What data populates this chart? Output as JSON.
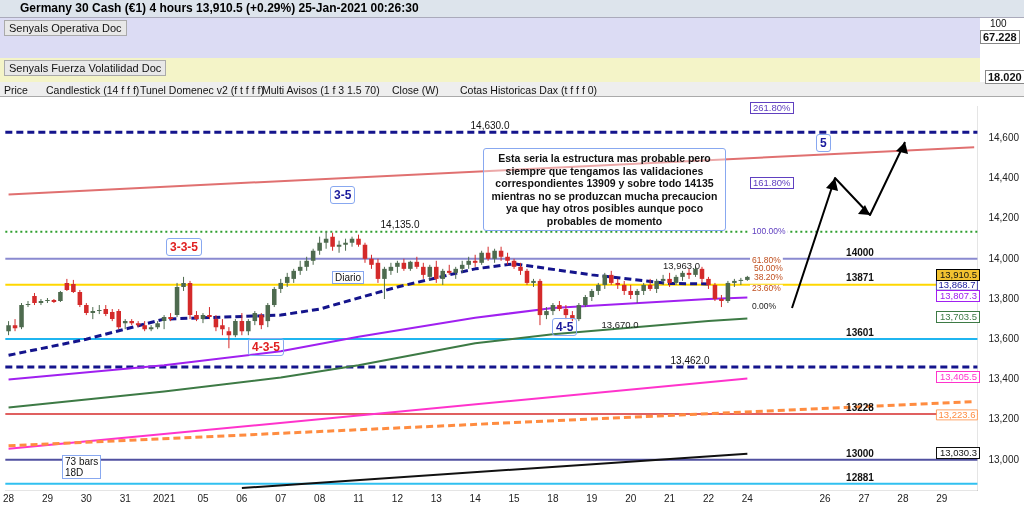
{
  "chart_data": {
    "type": "candlestick",
    "title": "Germany 30 Cash (€1) 4 hours 13,910.5 (+0.29%) 25-Jan-2021 00:26:30",
    "categories": [
      "28",
      null,
      null,
      null,
      null,
      null,
      "29",
      null,
      null,
      null,
      null,
      null,
      "30",
      null,
      null,
      null,
      null,
      null,
      "31",
      null,
      null,
      null,
      null,
      null,
      "2021",
      null,
      null,
      null,
      null,
      null,
      "05",
      null,
      null,
      null,
      null,
      null,
      "06",
      null,
      null,
      null,
      null,
      null,
      "07",
      null,
      null,
      null,
      null,
      null,
      "08",
      null,
      null,
      null,
      null,
      null,
      "11",
      null,
      null,
      null,
      null,
      null,
      "12",
      null,
      null,
      null,
      null,
      null,
      "13",
      null,
      null,
      null,
      null,
      null,
      "14",
      null,
      null,
      null,
      null,
      null,
      "15",
      null,
      null,
      null,
      null,
      null,
      "18",
      null,
      null,
      null,
      null,
      null,
      "19",
      null,
      null,
      null,
      null,
      null,
      "20",
      null,
      null,
      null,
      null,
      null,
      "21",
      null,
      null,
      null,
      null,
      null,
      "22",
      null,
      null,
      null,
      null,
      null,
      "24",
      null,
      null,
      null,
      null,
      null,
      null,
      null,
      null,
      null,
      null,
      null,
      "26",
      null,
      null,
      null,
      null,
      null,
      "27",
      null,
      null,
      null,
      null,
      null,
      "28",
      null,
      null,
      null,
      null,
      null,
      "29",
      null,
      null,
      null,
      null,
      null
    ],
    "ohlc": [
      [
        13640,
        13690,
        13620,
        13670
      ],
      [
        13670,
        13700,
        13640,
        13655
      ],
      [
        13660,
        13780,
        13650,
        13770
      ],
      [
        13770,
        13790,
        13760,
        13775
      ],
      [
        13815,
        13830,
        13770,
        13780
      ],
      [
        13780,
        13800,
        13770,
        13790
      ],
      [
        13790,
        13805,
        13780,
        13795
      ],
      [
        13795,
        13800,
        13780,
        13785
      ],
      [
        13790,
        13840,
        13785,
        13835
      ],
      [
        13880,
        13900,
        13840,
        13845
      ],
      [
        13875,
        13895,
        13830,
        13835
      ],
      [
        13835,
        13845,
        13760,
        13770
      ],
      [
        13770,
        13780,
        13720,
        13730
      ],
      [
        13730,
        13760,
        13700,
        13740
      ],
      [
        13740,
        13770,
        13725,
        13745
      ],
      [
        13750,
        13770,
        13715,
        13725
      ],
      [
        13735,
        13750,
        13690,
        13700
      ],
      [
        13740,
        13750,
        13650,
        13660
      ],
      [
        13680,
        13700,
        13650,
        13690
      ],
      [
        13690,
        13700,
        13670,
        13680
      ],
      [
        13680,
        13690,
        13660,
        13670
      ],
      [
        13670,
        13690,
        13640,
        13650
      ],
      [
        13650,
        13670,
        13640,
        13660
      ],
      [
        13660,
        13690,
        13650,
        13680
      ],
      [
        13690,
        13720,
        13650,
        13710
      ],
      [
        13710,
        13730,
        13690,
        13700
      ],
      [
        13720,
        13880,
        13710,
        13860
      ],
      [
        13860,
        13910,
        13840,
        13880
      ],
      [
        13880,
        13890,
        13700,
        13720
      ],
      [
        13720,
        13740,
        13690,
        13700
      ],
      [
        13700,
        13730,
        13680,
        13720
      ],
      [
        13720,
        13760,
        13700,
        13710
      ],
      [
        13700,
        13720,
        13640,
        13660
      ],
      [
        13670,
        13700,
        13620,
        13650
      ],
      [
        13640,
        13660,
        13555,
        13620
      ],
      [
        13620,
        13700,
        13610,
        13690
      ],
      [
        13690,
        13730,
        13620,
        13640
      ],
      [
        13640,
        13700,
        13620,
        13690
      ],
      [
        13690,
        13740,
        13670,
        13730
      ],
      [
        13720,
        13730,
        13650,
        13670
      ],
      [
        13690,
        13780,
        13660,
        13770
      ],
      [
        13770,
        13860,
        13760,
        13850
      ],
      [
        13850,
        13900,
        13830,
        13880
      ],
      [
        13880,
        13930,
        13860,
        13910
      ],
      [
        13900,
        13950,
        13880,
        13940
      ],
      [
        13940,
        13990,
        13920,
        13960
      ],
      [
        13960,
        14010,
        13940,
        13990
      ],
      [
        13990,
        14050,
        13970,
        14040
      ],
      [
        14040,
        14110,
        14020,
        14080
      ],
      [
        14080,
        14135,
        14050,
        14100
      ],
      [
        14110,
        14130,
        14040,
        14060
      ],
      [
        14060,
        14090,
        14030,
        14070
      ],
      [
        14070,
        14100,
        14040,
        14080
      ],
      [
        14080,
        14110,
        14060,
        14100
      ],
      [
        14100,
        14120,
        14060,
        14070
      ],
      [
        14070,
        14080,
        13980,
        14000
      ],
      [
        14000,
        14020,
        13950,
        13970
      ],
      [
        13980,
        14000,
        13880,
        13900
      ],
      [
        13900,
        13960,
        13800,
        13950
      ],
      [
        13940,
        13980,
        13920,
        13960
      ],
      [
        13960,
        13990,
        13930,
        13980
      ],
      [
        13980,
        14000,
        13940,
        13950
      ],
      [
        13950,
        13990,
        13940,
        13985
      ],
      [
        13985,
        14010,
        13950,
        13960
      ],
      [
        13960,
        13980,
        13900,
        13920
      ],
      [
        13910,
        13970,
        13890,
        13960
      ],
      [
        13960,
        13990,
        13880,
        13900
      ],
      [
        13900,
        13950,
        13870,
        13940
      ],
      [
        13940,
        13970,
        13920,
        13930
      ],
      [
        13930,
        13960,
        13900,
        13950
      ],
      [
        13950,
        13990,
        13930,
        13970
      ],
      [
        13970,
        14010,
        13950,
        13990
      ],
      [
        13990,
        14020,
        13960,
        13980
      ],
      [
        13980,
        14040,
        13970,
        14030
      ],
      [
        14030,
        14060,
        13990,
        14000
      ],
      [
        14000,
        14050,
        13980,
        14040
      ],
      [
        14040,
        14060,
        13990,
        14010
      ],
      [
        14010,
        14030,
        13970,
        13990
      ],
      [
        13990,
        14000,
        13950,
        13960
      ],
      [
        13960,
        13980,
        13920,
        13940
      ],
      [
        13940,
        13950,
        13870,
        13880
      ],
      [
        13880,
        13900,
        13860,
        13890
      ],
      [
        13890,
        13900,
        13670,
        13720
      ],
      [
        13720,
        13760,
        13700,
        13740
      ],
      [
        13740,
        13780,
        13720,
        13770
      ],
      [
        13770,
        13790,
        13740,
        13750
      ],
      [
        13750,
        13770,
        13700,
        13720
      ],
      [
        13720,
        13740,
        13690,
        13700
      ],
      [
        13700,
        13780,
        13690,
        13770
      ],
      [
        13770,
        13820,
        13760,
        13810
      ],
      [
        13810,
        13850,
        13790,
        13840
      ],
      [
        13840,
        13880,
        13820,
        13870
      ],
      [
        13870,
        13930,
        13850,
        13920
      ],
      [
        13920,
        13940,
        13870,
        13880
      ],
      [
        13880,
        13900,
        13850,
        13870
      ],
      [
        13870,
        13890,
        13820,
        13840
      ],
      [
        13840,
        13870,
        13800,
        13820
      ],
      [
        13820,
        13850,
        13780,
        13840
      ],
      [
        13840,
        13880,
        13820,
        13870
      ],
      [
        13870,
        13900,
        13840,
        13850
      ],
      [
        13850,
        13900,
        13830,
        13890
      ],
      [
        13890,
        13920,
        13870,
        13900
      ],
      [
        13900,
        13930,
        13860,
        13880
      ],
      [
        13880,
        13920,
        13870,
        13910
      ],
      [
        13910,
        13940,
        13890,
        13930
      ],
      [
        13930,
        13950,
        13900,
        13920
      ],
      [
        13920,
        13963,
        13910,
        13950
      ],
      [
        13950,
        13960,
        13880,
        13900
      ],
      [
        13900,
        13910,
        13850,
        13870
      ],
      [
        13870,
        13880,
        13790,
        13800
      ],
      [
        13800,
        13820,
        13760,
        13790
      ],
      [
        13790,
        13890,
        13780,
        13880
      ],
      [
        13880,
        13900,
        13860,
        13890
      ],
      [
        13890,
        13905,
        13870,
        13895
      ],
      [
        13895,
        13915,
        13890,
        13910
      ],
      null,
      null,
      null,
      null,
      null,
      null,
      null,
      null,
      null,
      null,
      null,
      null,
      null,
      null,
      null,
      null,
      null,
      null,
      null,
      null,
      null,
      null,
      null,
      null,
      null,
      null,
      null,
      null,
      null,
      null,
      null,
      null,
      null,
      null,
      null
    ],
    "colors": [
      "#4e6b4f",
      "#d42a2a",
      "#4e6b4f",
      "#4e6b4f",
      "#d42a2a",
      "#4e6b4f",
      "#4e6b4f",
      "#d42a2a",
      "#4e6b4f",
      "#d42a2a",
      "#d42a2a",
      "#d42a2a",
      "#d42a2a",
      "#4e6b4f",
      "#4e6b4f",
      "#d42a2a",
      "#d42a2a",
      "#d42a2a",
      "#4e6b4f",
      "#d42a2a",
      "#d42a2a",
      "#d42a2a",
      "#4e6b4f",
      "#4e6b4f",
      "#4e6b4f",
      "#d42a2a",
      "#4e6b4f",
      "#4e6b4f",
      "#d42a2a",
      "#d42a2a",
      "#4e6b4f",
      "#d42a2a",
      "#d42a2a",
      "#d42a2a",
      "#d42a2a",
      "#4e6b4f",
      "#d42a2a",
      "#4e6b4f",
      "#4e6b4f",
      "#d42a2a",
      "#4e6b4f",
      "#4e6b4f",
      "#4e6b4f",
      "#4e6b4f",
      "#4e6b4f",
      "#4e6b4f",
      "#4e6b4f",
      "#4e6b4f",
      "#4e6b4f",
      "#4e6b4f",
      "#d42a2a",
      "#4e6b4f",
      "#4e6b4f",
      "#4e6b4f",
      "#d42a2a",
      "#d42a2a",
      "#d42a2a",
      "#d42a2a",
      "#4e6b4f",
      "#4e6b4f",
      "#4e6b4f",
      "#d42a2a",
      "#4e6b4f",
      "#d42a2a",
      "#d42a2a",
      "#4e6b4f",
      "#d42a2a",
      "#4e6b4f",
      "#d42a2a",
      "#4e6b4f",
      "#4e6b4f",
      "#4e6b4f",
      "#d42a2a",
      "#4e6b4f",
      "#d42a2a",
      "#4e6b4f",
      "#d42a2a",
      "#d42a2a",
      "#d42a2a",
      "#d42a2a",
      "#d42a2a",
      "#4e6b4f",
      "#d42a2a",
      "#4e6b4f",
      "#4e6b4f",
      "#d42a2a",
      "#d42a2a",
      "#d42a2a",
      "#4e6b4f",
      "#4e6b4f",
      "#4e6b4f",
      "#4e6b4f",
      "#4e6b4f",
      "#d42a2a",
      "#d42a2a",
      "#d42a2a",
      "#d42a2a",
      "#4e6b4f",
      "#4e6b4f",
      "#d42a2a",
      "#4e6b4f",
      "#4e6b4f",
      "#d42a2a",
      "#4e6b4f",
      "#4e6b4f",
      "#d42a2a",
      "#4e6b4f",
      "#d42a2a",
      "#d42a2a",
      "#d42a2a",
      "#d42a2a",
      "#4e6b4f",
      "#4e6b4f",
      "#4e6b4f",
      "#4e6b4f",
      null,
      null,
      null,
      null,
      null,
      null,
      null,
      null,
      null,
      null,
      null,
      null,
      null,
      null,
      null,
      null,
      null,
      null,
      null,
      null,
      null,
      null,
      null,
      null,
      null,
      null,
      null,
      null,
      null,
      null,
      null,
      null,
      null,
      null,
      null
    ],
    "series": [
      {
        "type": "line",
        "color": "#e07070",
        "values": [
          14320,
          null,
          null,
          null,
          null,
          null,
          null,
          null,
          null,
          null,
          null,
          null,
          null,
          null,
          null,
          null,
          null,
          null,
          null,
          null,
          null,
          null,
          null,
          null,
          null,
          null,
          null,
          null,
          null,
          null,
          null,
          null,
          null,
          null,
          null,
          null,
          null,
          null,
          null,
          null,
          null,
          null,
          null,
          null,
          null,
          null,
          null,
          null,
          null,
          null,
          null,
          null,
          null,
          null,
          null,
          null,
          null,
          null,
          null,
          null,
          null,
          null,
          null,
          null,
          null,
          null,
          null,
          null,
          null,
          null,
          null,
          null,
          null,
          null,
          null,
          null,
          null,
          null,
          null,
          null,
          null,
          null,
          null,
          null,
          null,
          null,
          null,
          null,
          null,
          null,
          null,
          null,
          null,
          null,
          null,
          null,
          null,
          null,
          null,
          null,
          null,
          null,
          null,
          null,
          null,
          null,
          null,
          null,
          null,
          null,
          null,
          null,
          null,
          null,
          null,
          null,
          null,
          null,
          null,
          null,
          null,
          null,
          null,
          null,
          null,
          null,
          null,
          null,
          null,
          null,
          null,
          null,
          null,
          null,
          null,
          null,
          null,
          null,
          null,
          null,
          null,
          null,
          null,
          null,
          null,
          null,
          null,
          null,
          null,
          14555
        ]
      },
      {
        "type": "line",
        "color": "#ff8c40",
        "line_style": "dashed",
        "values": [
          13070,
          null,
          null,
          null,
          null,
          null,
          null,
          null,
          null,
          null,
          null,
          null,
          null,
          null,
          null,
          null,
          null,
          null,
          null,
          null,
          null,
          null,
          null,
          null,
          null,
          null,
          null,
          null,
          null,
          null,
          null,
          null,
          null,
          null,
          null,
          null,
          null,
          null,
          null,
          null,
          null,
          null,
          null,
          null,
          null,
          null,
          null,
          null,
          null,
          null,
          null,
          null,
          null,
          null,
          null,
          null,
          null,
          null,
          null,
          null,
          null,
          null,
          null,
          null,
          null,
          null,
          null,
          null,
          null,
          null,
          null,
          null,
          null,
          null,
          null,
          null,
          null,
          null,
          null,
          null,
          null,
          null,
          null,
          null,
          null,
          null,
          null,
          null,
          null,
          null,
          null,
          null,
          null,
          null,
          null,
          null,
          null,
          null,
          null,
          null,
          null,
          null,
          null,
          null,
          null,
          null,
          null,
          null,
          null,
          null,
          null,
          null,
          null,
          null,
          null,
          null,
          null,
          null,
          null,
          null,
          null,
          null,
          null,
          null,
          null,
          null,
          null,
          null,
          null,
          null,
          null,
          null,
          null,
          null,
          null,
          null,
          null,
          null,
          null,
          null,
          null,
          null,
          null,
          null,
          null,
          null,
          null,
          null,
          null,
          13290
        ]
      },
      {
        "type": "line",
        "color": "#ff33cc",
        "values": [
          13055,
          null,
          null,
          null,
          null,
          null,
          null,
          null,
          null,
          null,
          null,
          null,
          null,
          null,
          null,
          null,
          null,
          null,
          null,
          null,
          null,
          null,
          null,
          null,
          null,
          null,
          null,
          null,
          null,
          null,
          null,
          null,
          null,
          null,
          null,
          null,
          null,
          null,
          null,
          null,
          null,
          null,
          null,
          null,
          null,
          null,
          null,
          null,
          null,
          null,
          null,
          null,
          null,
          null,
          null,
          null,
          null,
          null,
          null,
          null,
          null,
          null,
          null,
          null,
          null,
          null,
          null,
          null,
          null,
          null,
          null,
          null,
          null,
          null,
          null,
          null,
          null,
          null,
          null,
          null,
          null,
          null,
          null,
          null,
          null,
          null,
          null,
          null,
          null,
          null,
          null,
          null,
          null,
          null,
          null,
          null,
          null,
          null,
          null,
          null,
          null,
          null,
          null,
          null,
          null,
          null,
          null,
          null,
          null,
          null,
          null,
          null,
          null,
          null,
          13405,
          null,
          null,
          null,
          null,
          null,
          null,
          null,
          null,
          null,
          null,
          null,
          null,
          null,
          null,
          null,
          null,
          null,
          null,
          null,
          null,
          null,
          null,
          null,
          null,
          null,
          null,
          null,
          null,
          null,
          null,
          null,
          null,
          null,
          null,
          null
        ]
      },
      {
        "type": "line",
        "color": "#111111",
        "values": [
          null,
          null,
          null,
          null,
          null,
          null,
          null,
          null,
          null,
          null,
          null,
          null,
          null,
          null,
          null,
          null,
          null,
          null,
          null,
          null,
          null,
          null,
          null,
          null,
          null,
          null,
          null,
          null,
          null,
          null,
          null,
          null,
          null,
          null,
          null,
          null,
          12860,
          null,
          null,
          null,
          null,
          null,
          null,
          null,
          null,
          null,
          null,
          null,
          null,
          null,
          null,
          null,
          null,
          null,
          null,
          null,
          null,
          null,
          null,
          null,
          null,
          null,
          null,
          null,
          null,
          null,
          null,
          null,
          null,
          null,
          null,
          null,
          null,
          null,
          null,
          null,
          null,
          null,
          null,
          null,
          null,
          null,
          null,
          null,
          null,
          null,
          null,
          null,
          null,
          null,
          null,
          null,
          null,
          null,
          null,
          null,
          null,
          null,
          null,
          null,
          null,
          null,
          null,
          null,
          null,
          null,
          null,
          null,
          null,
          null,
          null,
          null,
          null,
          null,
          13030,
          null,
          null,
          null,
          null,
          null,
          null,
          null,
          null,
          null,
          null,
          null,
          null,
          null,
          null,
          null,
          null,
          null,
          null,
          null,
          null,
          null,
          null,
          null,
          null,
          null,
          null,
          null,
          null,
          null,
          null,
          null,
          null,
          null,
          null,
          null
        ]
      },
      {
        "type": "line",
        "color": "#a020f0",
        "values": [
          13400,
          null,
          null,
          null,
          null,
          null,
          null,
          null,
          null,
          null,
          null,
          null,
          null,
          null,
          null,
          null,
          null,
          null,
          null,
          null,
          null,
          null,
          null,
          null,
          13470,
          null,
          null,
          null,
          null,
          null,
          null,
          null,
          null,
          null,
          null,
          null,
          null,
          null,
          null,
          null,
          null,
          null,
          13540,
          null,
          null,
          null,
          null,
          null,
          null,
          null,
          null,
          null,
          null,
          null,
          13612,
          null,
          null,
          null,
          null,
          null,
          null,
          null,
          null,
          null,
          null,
          null,
          null,
          null,
          null,
          null,
          null,
          null,
          13707,
          null,
          null,
          null,
          null,
          null,
          null,
          null,
          null,
          null,
          null,
          null,
          13755,
          null,
          null,
          null,
          null,
          null,
          null,
          null,
          null,
          null,
          null,
          null,
          null,
          null,
          null,
          null,
          null,
          null,
          null,
          null,
          null,
          null,
          null,
          null,
          13800,
          null,
          null,
          null,
          null,
          null,
          13807,
          null,
          null,
          null,
          null,
          null,
          null,
          null,
          null,
          null,
          null,
          null,
          null,
          null,
          null,
          null,
          null,
          null,
          null,
          null,
          null,
          null,
          null,
          null,
          null,
          null,
          null,
          null,
          null,
          null,
          null,
          null,
          null,
          null,
          null,
          null
        ]
      },
      {
        "type": "line",
        "color": "#3d7a45",
        "values": [
          13260,
          null,
          null,
          null,
          null,
          null,
          null,
          null,
          null,
          null,
          null,
          null,
          null,
          null,
          null,
          null,
          null,
          null,
          null,
          null,
          null,
          null,
          null,
          null,
          13340,
          null,
          null,
          null,
          null,
          null,
          null,
          null,
          null,
          null,
          null,
          null,
          null,
          null,
          null,
          null,
          null,
          null,
          13410,
          null,
          null,
          null,
          null,
          null,
          null,
          null,
          null,
          null,
          null,
          null,
          13470,
          null,
          null,
          null,
          null,
          null,
          null,
          null,
          null,
          null,
          null,
          null,
          null,
          null,
          null,
          null,
          null,
          null,
          13580,
          null,
          null,
          null,
          null,
          null,
          null,
          null,
          null,
          null,
          null,
          null,
          13625,
          null,
          null,
          null,
          null,
          null,
          null,
          null,
          null,
          null,
          null,
          null,
          null,
          null,
          null,
          null,
          null,
          null,
          null,
          null,
          null,
          null,
          null,
          null,
          13690,
          null,
          null,
          null,
          null,
          null,
          13703,
          null,
          null,
          null,
          null,
          null,
          null,
          null,
          null,
          null,
          null,
          null,
          null,
          null,
          null,
          null,
          null,
          null,
          null,
          null,
          null,
          null,
          null,
          null,
          null,
          null,
          null,
          null,
          null,
          null,
          null,
          null,
          null,
          null,
          null,
          null
        ]
      },
      {
        "type": "line",
        "color": "#14148c",
        "line_style": "dashed",
        "values": [
          13520,
          null,
          null,
          null,
          null,
          null,
          null,
          null,
          null,
          null,
          null,
          null,
          13600,
          null,
          null,
          null,
          null,
          null,
          null,
          null,
          null,
          null,
          null,
          null,
          13700,
          null,
          null,
          null,
          null,
          null,
          null,
          null,
          null,
          null,
          null,
          null,
          null,
          null,
          null,
          null,
          null,
          null,
          13720,
          null,
          null,
          null,
          null,
          null,
          13750,
          null,
          null,
          null,
          null,
          null,
          null,
          null,
          null,
          null,
          null,
          null,
          13860,
          null,
          null,
          null,
          null,
          null,
          null,
          null,
          null,
          null,
          null,
          null,
          13950,
          null,
          null,
          null,
          null,
          null,
          13975,
          null,
          null,
          null,
          null,
          null,
          null,
          null,
          null,
          null,
          null,
          null,
          13920,
          null,
          null,
          null,
          null,
          null,
          null,
          null,
          null,
          null,
          null,
          null,
          13877,
          null,
          null,
          null,
          null,
          null,
          13875,
          null,
          null,
          null,
          null,
          null,
          null,
          null,
          null,
          null,
          null,
          null,
          null,
          null,
          null,
          null,
          null,
          null,
          null,
          null,
          null,
          null,
          null,
          null,
          null,
          null,
          null,
          null,
          null,
          null,
          null,
          null,
          null,
          null,
          null,
          null,
          null,
          null,
          null,
          null,
          null,
          null
        ]
      }
    ],
    "ylim": [
      12850,
      14760
    ],
    "yticks": [
      {
        "value": 13000,
        "label": "13,000"
      },
      {
        "value": 13200,
        "label": "13,200"
      },
      {
        "value": 13400,
        "label": "13,400"
      },
      {
        "value": 13600,
        "label": "13,600"
      },
      {
        "value": 13800,
        "label": "13,800"
      },
      {
        "value": 14000,
        "label": "14,000"
      },
      {
        "value": 14200,
        "label": "14,200"
      },
      {
        "value": 14400,
        "label": "14,400"
      },
      {
        "value": 14600,
        "label": "14,600"
      }
    ],
    "ref_lines": [
      {
        "axis": "y",
        "value": 14630,
        "label": "14,630.0",
        "color": "#14148c",
        "line_style": "dashed"
      },
      {
        "axis": "y",
        "value": 14135,
        "label": "14,135.0",
        "color": "#2e9e2e",
        "line_style": "dotted"
      },
      {
        "axis": "y",
        "value": 14000,
        "label": "14000",
        "color": "#8a8ad0"
      },
      {
        "axis": "y",
        "value": 13871,
        "label": "13871",
        "color": "#ffd700"
      },
      {
        "axis": "y",
        "value": 13601,
        "label": "13601",
        "color": "#1fb5f0"
      },
      {
        "axis": "y",
        "value": 13462,
        "label": "13,462.0",
        "color": "#14148c",
        "line_style": "dashed"
      },
      {
        "axis": "y",
        "value": 13228,
        "label": "13228",
        "color": "#e06060"
      },
      {
        "axis": "y",
        "value": 13000,
        "label": "13000",
        "color": "#5050a0"
      },
      {
        "axis": "y",
        "value": 12881,
        "label": "12881",
        "color": "#30c0f0"
      }
    ],
    "annotations": [
      "Senyals Operativa Doc",
      "100",
      "67.228",
      "Senyals Fuerza Volatilidad Doc",
      "18.020",
      "Price",
      "Candlestick (14 f f f)",
      "Tunel Domenec v2 (f t f f f)",
      "Multi Avisos (1 f 3 1.5 70)",
      "Close (W)",
      "Cotas Historicas Dax (t f f f 0)",
      "Esta seria la estructura mas probable pero siempre que tengamos las validaciones correspondientes 13909 y sobre todo 14135 mientras no se produzcan mucha precaucion ya que hay otros posibles aunque poco probables de momento",
      "3-5",
      "3-3-5",
      "4-3-5",
      "4-5",
      "5",
      "Diario",
      "73 bars\n18D",
      "261.80%",
      "161.80%",
      {
        "text": "100.00%",
        "y": 14135
      },
      {
        "text": "61.80%",
        "y": 13992
      },
      "50.00%",
      "38.20%",
      {
        "text": "23.60%",
        "y": 13849
      },
      {
        "text": "0.00%",
        "y": 13760
      },
      {
        "text": "13,963.0",
        "y": 13963
      },
      {
        "text": "13,670.0",
        "y": 13670
      },
      "13,910.5",
      {
        "text": "13,868.7",
        "y": 13868.7
      },
      "13,807.3",
      "13,703.5",
      "13,405.5",
      {
        "text": "13,223.6",
        "y": 13223.6
      },
      "13,030.3"
    ]
  }
}
